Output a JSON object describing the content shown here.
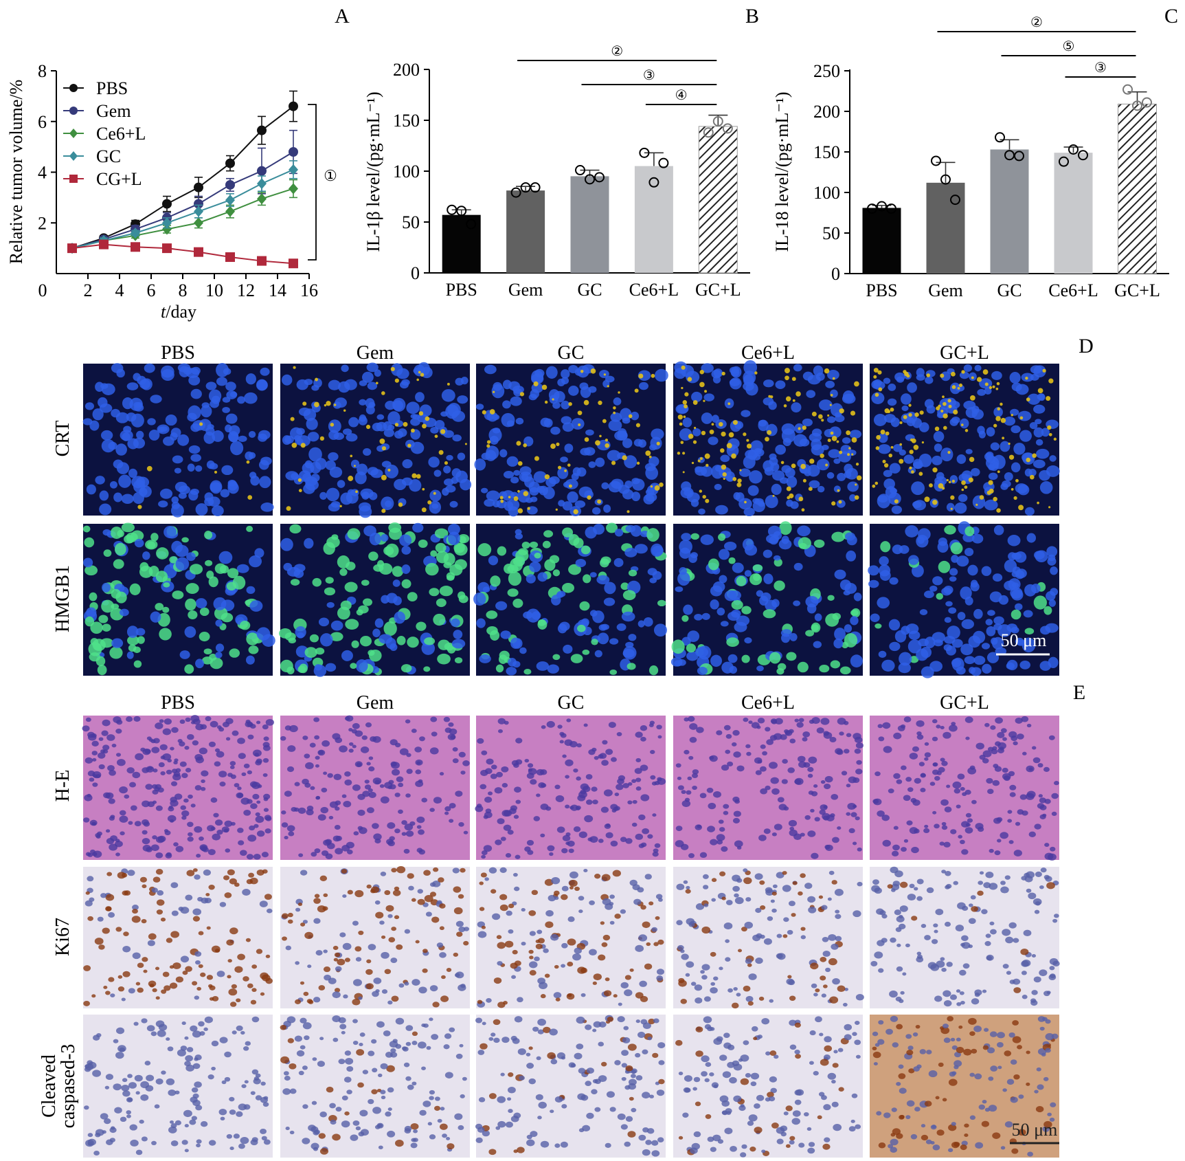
{
  "colors": {
    "pbs": "#111111",
    "gem": "#353a7a",
    "ce6l": "#3f8f3f",
    "gc": "#3a8d9b",
    "cgl": "#b0283b",
    "bar_pbs": "#050505",
    "bar_gem": "#616161",
    "bar_gc": "#8f939a",
    "bar_ce6l": "#c8c9cc",
    "fluor_bg": "#0c1240",
    "nuclei": "#2f5fe6",
    "crt": "#e2c01a",
    "hmgb1": "#4fe08a",
    "he_bg": "#c77fc2",
    "he_nuclei": "#4a3aa0",
    "ihc_bg": "#e7e3ee",
    "ihc_pos": "#8a3a12",
    "ihc_neg": "#5860a8"
  },
  "panel_letters": [
    "A",
    "B",
    "C",
    "D",
    "E"
  ],
  "panelA": {
    "ylabel": "Relative tumor volume/%",
    "xlabel_italic": "t",
    "xlabel_rest": "/day",
    "sig_mark": "①",
    "chart_data": {
      "type": "line",
      "x": [
        1,
        3,
        5,
        7,
        9,
        11,
        13,
        15
      ],
      "xlim": [
        0,
        16
      ],
      "ylim": [
        0,
        8
      ],
      "xticks": [
        "0",
        "2",
        "4",
        "6",
        "8",
        "10",
        "12",
        "14",
        "16"
      ],
      "yticks": [
        "2",
        "4",
        "6",
        "8"
      ],
      "legend_position": "top-left",
      "series": [
        {
          "name": "PBS",
          "color": "#111111",
          "marker": "circle",
          "values": [
            1.0,
            1.4,
            1.95,
            2.75,
            3.4,
            4.35,
            5.65,
            6.6
          ],
          "err": [
            0.05,
            0.1,
            0.15,
            0.3,
            0.4,
            0.3,
            0.55,
            0.6
          ]
        },
        {
          "name": "Gem",
          "color": "#353a7a",
          "marker": "circle",
          "values": [
            1.0,
            1.35,
            1.75,
            2.2,
            2.75,
            3.5,
            4.05,
            4.8
          ],
          "err": [
            0.05,
            0.1,
            0.15,
            0.2,
            0.3,
            0.25,
            0.9,
            0.85
          ]
        },
        {
          "name": "Ce6+L",
          "color": "#3f8f3f",
          "marker": "diamond",
          "values": [
            1.0,
            1.3,
            1.5,
            1.75,
            2.0,
            2.45,
            2.95,
            3.35
          ],
          "err": [
            0.05,
            0.1,
            0.1,
            0.15,
            0.2,
            0.25,
            0.25,
            0.35
          ]
        },
        {
          "name": "GC",
          "color": "#3a8d9b",
          "marker": "diamond",
          "values": [
            1.0,
            1.3,
            1.6,
            2.0,
            2.45,
            2.9,
            3.55,
            4.1
          ],
          "err": [
            0.05,
            0.1,
            0.1,
            0.2,
            0.25,
            0.25,
            0.3,
            0.35
          ]
        },
        {
          "name": "CG+L",
          "color": "#b0283b",
          "marker": "square",
          "values": [
            1.0,
            1.15,
            1.05,
            1.0,
            0.85,
            0.65,
            0.5,
            0.4
          ],
          "err": [
            0.03,
            0.05,
            0.05,
            0.05,
            0.05,
            0.04,
            0.04,
            0.04
          ]
        }
      ]
    }
  },
  "panelB": {
    "ylabel": "IL-1β level/(pg·mL⁻¹)",
    "sig_marks": [
      "②",
      "③",
      "④"
    ],
    "chart_data": {
      "type": "bar",
      "categories": [
        "PBS",
        "Gem",
        "GC",
        "Ce6+L",
        "GC+L"
      ],
      "values": [
        57,
        81,
        95,
        105,
        144
      ],
      "err": [
        5,
        4,
        6,
        13,
        11
      ],
      "points": [
        [
          62,
          61,
          48
        ],
        [
          79,
          84,
          84
        ],
        [
          101,
          92,
          94
        ],
        [
          118,
          89,
          108
        ],
        [
          138,
          149,
          142
        ]
      ],
      "ylim": [
        0,
        200
      ],
      "yticks": [
        "0",
        "50",
        "100",
        "150",
        "200"
      ],
      "sig_pairs": [
        [
          1,
          4
        ],
        [
          2,
          4
        ],
        [
          3,
          4
        ]
      ]
    }
  },
  "panelC": {
    "ylabel": "IL-18 level/(pg·mL⁻¹)",
    "sig_marks": [
      "②",
      "⑤",
      "③"
    ],
    "chart_data": {
      "type": "bar",
      "categories": [
        "PBS",
        "Gem",
        "GC",
        "Ce6+L",
        "GC+L"
      ],
      "values": [
        81,
        112,
        153,
        149,
        209
      ],
      "err": [
        3,
        25,
        12,
        7,
        15
      ],
      "points": [
        [
          80,
          83,
          80
        ],
        [
          139,
          116,
          91
        ],
        [
          168,
          146,
          145
        ],
        [
          138,
          153,
          146
        ],
        [
          227,
          207,
          211
        ]
      ],
      "ylim": [
        0,
        250
      ],
      "yticks": [
        "0",
        "50",
        "100",
        "150",
        "200",
        "250"
      ],
      "sig_pairs": [
        [
          1,
          4
        ],
        [
          2,
          4
        ],
        [
          3,
          4
        ]
      ]
    }
  },
  "panelD": {
    "columns": [
      "PBS",
      "Gem",
      "GC",
      "Ce6+L",
      "GC+L"
    ],
    "rows": [
      "CRT",
      "HMGB1"
    ],
    "scalebar": "50 μm"
  },
  "panelE": {
    "columns": [
      "PBS",
      "Gem",
      "GC",
      "Ce6+L",
      "GC+L"
    ],
    "rows": [
      "H-E",
      "Ki67"
    ],
    "row3_line1": "Cleaved",
    "row3_line2": "caspased-3",
    "scalebar": "50 μm"
  }
}
